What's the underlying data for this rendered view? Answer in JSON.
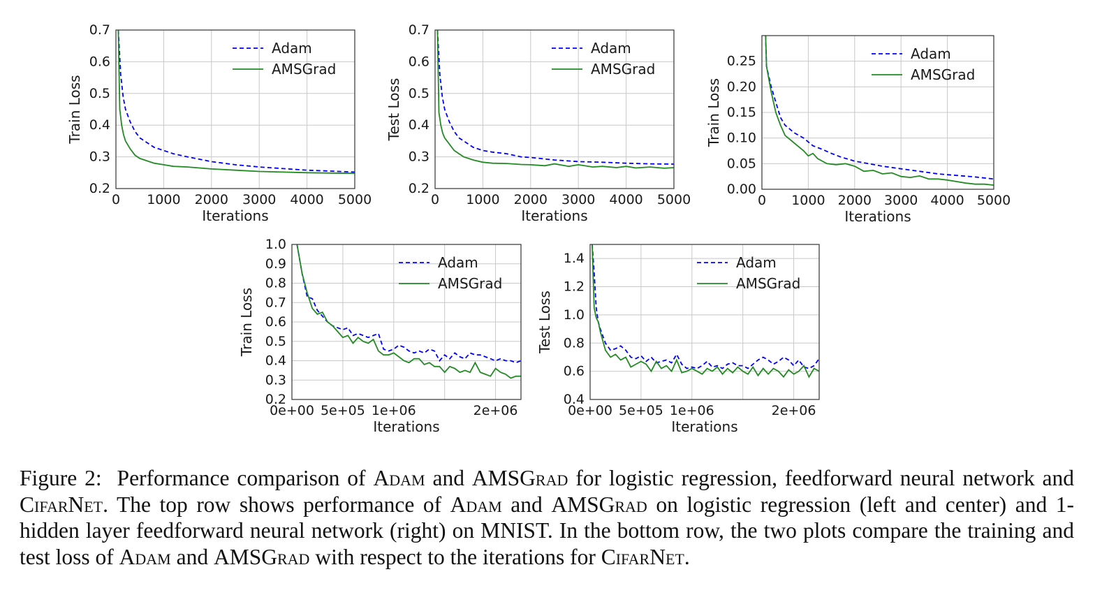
{
  "caption": {
    "label": "Figure 2:",
    "parts": [
      {
        "t": "Performance comparison of "
      },
      {
        "t": "Adam",
        "sc": true
      },
      {
        "t": " and "
      },
      {
        "t": "AMSGrad",
        "sc": true
      },
      {
        "t": " for logistic regression, feedforward neural network and "
      },
      {
        "t": "CifarNet",
        "sc": true
      },
      {
        "t": ".  The top row shows performance of "
      },
      {
        "t": "Adam",
        "sc": true
      },
      {
        "t": " and "
      },
      {
        "t": "AMSGrad",
        "sc": true
      },
      {
        "t": " on logistic regression (left and center) and 1-hidden layer feedforward neural network (right) on MNIST. In the bottom row, the two plots compare the training and test loss of "
      },
      {
        "t": "Adam",
        "sc": true
      },
      {
        "t": " and "
      },
      {
        "t": "AMSGrad",
        "sc": true
      },
      {
        "t": " with respect to the iterations for "
      },
      {
        "t": "CifarNet",
        "sc": true
      },
      {
        "t": "."
      }
    ]
  },
  "colors": {
    "adam": "#0000ff",
    "amsgrad": "#228b22",
    "grid": "#c8c8c8",
    "axes": "#333333"
  },
  "chart_data": [
    {
      "type": "line",
      "xlabel": "Iterations",
      "ylabel": "Train Loss",
      "xlim": [
        0,
        5000
      ],
      "ylim": [
        0.2,
        0.7
      ],
      "xticks": [
        0,
        1000,
        2000,
        3000,
        4000,
        5000
      ],
      "xtick_labels": [
        "0",
        "1000",
        "2000",
        "3000",
        "4000",
        "5000"
      ],
      "yticks": [
        0.2,
        0.3,
        0.4,
        0.5,
        0.6,
        0.7
      ],
      "ytick_labels": [
        "0.2",
        "0.3",
        "0.4",
        "0.5",
        "0.6",
        "0.7"
      ],
      "grid": true,
      "legend": "top-right",
      "series": [
        {
          "name": "Adam",
          "style": "dashed",
          "x": [
            50,
            100,
            150,
            200,
            300,
            400,
            500,
            600,
            800,
            1000,
            1200,
            1500,
            2000,
            2500,
            3000,
            3500,
            4000,
            4500,
            5000
          ],
          "y": [
            0.7,
            0.56,
            0.49,
            0.45,
            0.41,
            0.38,
            0.36,
            0.35,
            0.33,
            0.32,
            0.31,
            0.3,
            0.285,
            0.275,
            0.268,
            0.263,
            0.258,
            0.255,
            0.252
          ]
        },
        {
          "name": "AMSGrad",
          "style": "solid",
          "x": [
            50,
            80,
            120,
            160,
            200,
            300,
            400,
            500,
            600,
            800,
            1000,
            1200,
            1500,
            2000,
            2500,
            3000,
            3500,
            4000,
            4500,
            5000
          ],
          "y": [
            0.7,
            0.45,
            0.4,
            0.37,
            0.35,
            0.325,
            0.305,
            0.295,
            0.29,
            0.28,
            0.275,
            0.27,
            0.268,
            0.262,
            0.258,
            0.254,
            0.252,
            0.25,
            0.249,
            0.248
          ]
        }
      ]
    },
    {
      "type": "line",
      "xlabel": "Iterations",
      "ylabel": "Test Loss",
      "xlim": [
        0,
        5000
      ],
      "ylim": [
        0.2,
        0.7
      ],
      "xticks": [
        0,
        1000,
        2000,
        3000,
        4000,
        5000
      ],
      "xtick_labels": [
        "0",
        "1000",
        "2000",
        "3000",
        "4000",
        "5000"
      ],
      "yticks": [
        0.2,
        0.3,
        0.4,
        0.5,
        0.6,
        0.7
      ],
      "ytick_labels": [
        "0.2",
        "0.3",
        "0.4",
        "0.5",
        "0.6",
        "0.7"
      ],
      "grid": true,
      "legend": "top-right",
      "series": [
        {
          "name": "Adam",
          "style": "dashed",
          "x": [
            50,
            100,
            150,
            200,
            300,
            400,
            500,
            600,
            800,
            1000,
            1200,
            1500,
            1800,
            2000,
            2200,
            2500,
            3000,
            3500,
            4000,
            4500,
            5000
          ],
          "y": [
            0.7,
            0.56,
            0.49,
            0.45,
            0.41,
            0.38,
            0.36,
            0.35,
            0.33,
            0.32,
            0.315,
            0.31,
            0.3,
            0.298,
            0.295,
            0.29,
            0.285,
            0.283,
            0.28,
            0.278,
            0.277
          ]
        },
        {
          "name": "AMSGrad",
          "style": "solid",
          "x": [
            50,
            80,
            120,
            160,
            200,
            300,
            400,
            500,
            600,
            800,
            1000,
            1200,
            1500,
            1800,
            2000,
            2300,
            2500,
            2800,
            3000,
            3300,
            3500,
            3800,
            4000,
            4200,
            4500,
            4800,
            5000
          ],
          "y": [
            0.7,
            0.44,
            0.4,
            0.375,
            0.36,
            0.34,
            0.32,
            0.31,
            0.3,
            0.29,
            0.283,
            0.28,
            0.279,
            0.276,
            0.275,
            0.272,
            0.278,
            0.27,
            0.275,
            0.268,
            0.27,
            0.266,
            0.27,
            0.265,
            0.268,
            0.264,
            0.266
          ]
        }
      ]
    },
    {
      "type": "line",
      "xlabel": "Iterations",
      "ylabel": "Train Loss",
      "xlim": [
        0,
        5000
      ],
      "ylim": [
        0.0,
        0.3
      ],
      "xticks": [
        0,
        1000,
        2000,
        3000,
        4000,
        5000
      ],
      "xtick_labels": [
        "0",
        "1000",
        "2000",
        "3000",
        "4000",
        "5000"
      ],
      "yticks": [
        0.0,
        0.05,
        0.1,
        0.15,
        0.2,
        0.25
      ],
      "ytick_labels": [
        "0.00",
        "0.05",
        "0.10",
        "0.15",
        "0.20",
        "0.25"
      ],
      "grid": true,
      "legend": "top-right",
      "series": [
        {
          "name": "Adam",
          "style": "dashed",
          "x": [
            80,
            100,
            200,
            300,
            400,
            500,
            700,
            900,
            1100,
            1300,
            1500,
            1700,
            2000,
            2300,
            2600,
            3000,
            3400,
            3800,
            4200,
            4600,
            5000
          ],
          "y": [
            0.3,
            0.24,
            0.2,
            0.17,
            0.14,
            0.125,
            0.11,
            0.1,
            0.085,
            0.078,
            0.07,
            0.063,
            0.055,
            0.05,
            0.045,
            0.04,
            0.035,
            0.03,
            0.027,
            0.024,
            0.02
          ]
        },
        {
          "name": "AMSGrad",
          "style": "solid",
          "x": [
            80,
            100,
            200,
            300,
            400,
            500,
            700,
            900,
            1000,
            1100,
            1200,
            1400,
            1600,
            1800,
            2000,
            2200,
            2400,
            2600,
            2800,
            3000,
            3200,
            3400,
            3600,
            3800,
            4000,
            4200,
            4400,
            4600,
            4800,
            5000
          ],
          "y": [
            0.3,
            0.24,
            0.19,
            0.15,
            0.125,
            0.105,
            0.09,
            0.075,
            0.065,
            0.07,
            0.06,
            0.05,
            0.048,
            0.05,
            0.045,
            0.035,
            0.037,
            0.03,
            0.032,
            0.025,
            0.023,
            0.026,
            0.02,
            0.02,
            0.018,
            0.015,
            0.012,
            0.01,
            0.01,
            0.008
          ]
        }
      ]
    },
    {
      "type": "line",
      "xlabel": "Iterations",
      "ylabel": "Train Loss",
      "xlim": [
        0,
        2250000
      ],
      "ylim": [
        0.2,
        1.0
      ],
      "xticks": [
        0,
        500000,
        1000000,
        1500000,
        2000000
      ],
      "xtick_labels": [
        "0e+00",
        "5e+05",
        "1e+06",
        "",
        "2e+06"
      ],
      "yticks": [
        0.2,
        0.3,
        0.4,
        0.5,
        0.6,
        0.7,
        0.8,
        0.9,
        1.0
      ],
      "ytick_labels": [
        "0.2",
        "0.3",
        "0.4",
        "0.5",
        "0.6",
        "0.7",
        "0.8",
        "0.9",
        "1.0"
      ],
      "grid": true,
      "legend": "top-right",
      "series": [
        {
          "name": "Adam",
          "style": "dashed",
          "x": [
            50000,
            100000,
            150000,
            200000,
            250000,
            300000,
            350000,
            400000,
            450000,
            500000,
            550000,
            600000,
            650000,
            700000,
            750000,
            800000,
            850000,
            900000,
            950000,
            1000000,
            1050000,
            1100000,
            1150000,
            1200000,
            1250000,
            1300000,
            1350000,
            1400000,
            1450000,
            1500000,
            1550000,
            1600000,
            1650000,
            1700000,
            1750000,
            1800000,
            1850000,
            1900000,
            1950000,
            2000000,
            2050000,
            2100000,
            2150000,
            2200000,
            2250000
          ],
          "y": [
            1.0,
            0.85,
            0.73,
            0.72,
            0.66,
            0.63,
            0.6,
            0.58,
            0.57,
            0.56,
            0.57,
            0.53,
            0.54,
            0.53,
            0.52,
            0.53,
            0.54,
            0.46,
            0.45,
            0.46,
            0.48,
            0.47,
            0.45,
            0.44,
            0.45,
            0.44,
            0.46,
            0.45,
            0.4,
            0.43,
            0.41,
            0.44,
            0.42,
            0.41,
            0.44,
            0.43,
            0.43,
            0.42,
            0.41,
            0.4,
            0.41,
            0.4,
            0.4,
            0.39,
            0.4
          ]
        },
        {
          "name": "AMSGrad",
          "style": "solid",
          "x": [
            50000,
            100000,
            150000,
            200000,
            250000,
            300000,
            350000,
            400000,
            450000,
            500000,
            550000,
            600000,
            650000,
            700000,
            750000,
            800000,
            850000,
            900000,
            950000,
            1000000,
            1050000,
            1100000,
            1150000,
            1200000,
            1250000,
            1300000,
            1350000,
            1400000,
            1450000,
            1500000,
            1550000,
            1600000,
            1650000,
            1700000,
            1750000,
            1800000,
            1850000,
            1900000,
            1950000,
            2000000,
            2050000,
            2100000,
            2150000,
            2200000,
            2250000
          ],
          "y": [
            1.0,
            0.85,
            0.75,
            0.67,
            0.64,
            0.65,
            0.6,
            0.58,
            0.55,
            0.52,
            0.53,
            0.49,
            0.52,
            0.5,
            0.49,
            0.51,
            0.45,
            0.43,
            0.43,
            0.44,
            0.42,
            0.4,
            0.39,
            0.41,
            0.41,
            0.38,
            0.39,
            0.37,
            0.37,
            0.34,
            0.37,
            0.36,
            0.34,
            0.35,
            0.34,
            0.39,
            0.34,
            0.33,
            0.32,
            0.36,
            0.34,
            0.33,
            0.31,
            0.32,
            0.32
          ]
        }
      ]
    },
    {
      "type": "line",
      "xlabel": "Iterations",
      "ylabel": "Test Loss",
      "xlim": [
        0,
        2250000
      ],
      "ylim": [
        0.4,
        1.5
      ],
      "xticks": [
        0,
        500000,
        1000000,
        1500000,
        2000000
      ],
      "xtick_labels": [
        "0e+00",
        "5e+05",
        "1e+06",
        "",
        "2e+06"
      ],
      "yticks": [
        0.4,
        0.6,
        0.8,
        1.0,
        1.2,
        1.4
      ],
      "ytick_labels": [
        "0.4",
        "0.6",
        "0.8",
        "1.0",
        "1.2",
        "1.4"
      ],
      "grid": true,
      "legend": "top-right",
      "series": [
        {
          "name": "Adam",
          "style": "dashed",
          "x": [
            20000,
            40000,
            60000,
            80000,
            100000,
            150000,
            200000,
            250000,
            300000,
            350000,
            400000,
            450000,
            500000,
            550000,
            600000,
            650000,
            700000,
            750000,
            800000,
            850000,
            900000,
            950000,
            1000000,
            1050000,
            1100000,
            1150000,
            1200000,
            1250000,
            1300000,
            1350000,
            1400000,
            1450000,
            1500000,
            1550000,
            1600000,
            1650000,
            1700000,
            1750000,
            1800000,
            1850000,
            1900000,
            1950000,
            2000000,
            2050000,
            2100000,
            2150000,
            2200000,
            2250000
          ],
          "y": [
            1.5,
            1.3,
            1.05,
            0.95,
            0.9,
            0.8,
            0.75,
            0.76,
            0.78,
            0.75,
            0.7,
            0.69,
            0.71,
            0.67,
            0.7,
            0.66,
            0.67,
            0.68,
            0.66,
            0.72,
            0.65,
            0.62,
            0.63,
            0.62,
            0.64,
            0.67,
            0.63,
            0.64,
            0.62,
            0.65,
            0.66,
            0.64,
            0.64,
            0.62,
            0.65,
            0.68,
            0.7,
            0.68,
            0.65,
            0.67,
            0.7,
            0.68,
            0.64,
            0.68,
            0.63,
            0.62,
            0.64,
            0.69
          ]
        },
        {
          "name": "AMSGrad",
          "style": "solid",
          "x": [
            20000,
            40000,
            60000,
            80000,
            100000,
            150000,
            200000,
            250000,
            300000,
            350000,
            400000,
            450000,
            500000,
            550000,
            600000,
            650000,
            700000,
            750000,
            800000,
            850000,
            900000,
            950000,
            1000000,
            1050000,
            1100000,
            1150000,
            1200000,
            1250000,
            1300000,
            1350000,
            1400000,
            1450000,
            1500000,
            1550000,
            1600000,
            1650000,
            1700000,
            1750000,
            1800000,
            1850000,
            1900000,
            1950000,
            2000000,
            2050000,
            2100000,
            2150000,
            2200000,
            2250000
          ],
          "y": [
            1.5,
            1.05,
            0.98,
            0.95,
            0.88,
            0.75,
            0.7,
            0.72,
            0.68,
            0.7,
            0.63,
            0.65,
            0.67,
            0.65,
            0.6,
            0.67,
            0.62,
            0.64,
            0.6,
            0.68,
            0.59,
            0.6,
            0.62,
            0.6,
            0.58,
            0.62,
            0.6,
            0.63,
            0.58,
            0.62,
            0.59,
            0.63,
            0.6,
            0.58,
            0.63,
            0.57,
            0.62,
            0.58,
            0.62,
            0.6,
            0.56,
            0.61,
            0.58,
            0.6,
            0.64,
            0.56,
            0.62,
            0.6
          ]
        }
      ]
    }
  ]
}
